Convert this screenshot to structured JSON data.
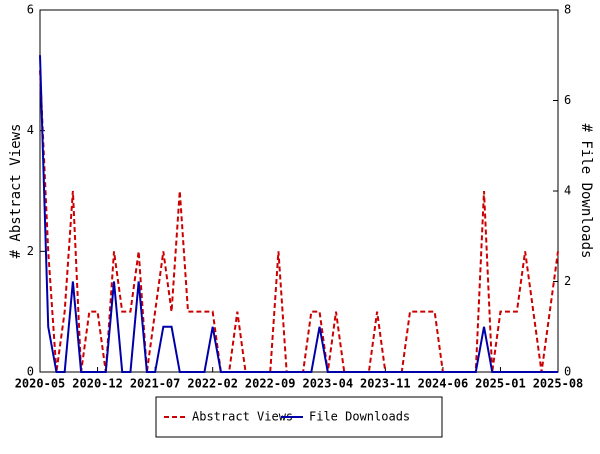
{
  "chart_data": {
    "type": "line",
    "ylabel": "# Abstract Views",
    "y2label": "# File Downloads",
    "categories": [
      "2020-05",
      null,
      null,
      null,
      null,
      null,
      null,
      "2020-12",
      null,
      null,
      null,
      null,
      null,
      null,
      "2021-07",
      null,
      null,
      null,
      null,
      null,
      null,
      "2022-02",
      null,
      null,
      null,
      null,
      null,
      null,
      "2022-09",
      null,
      null,
      null,
      null,
      null,
      null,
      "2023-04",
      null,
      null,
      null,
      null,
      null,
      null,
      "2023-11",
      null,
      null,
      null,
      null,
      null,
      null,
      "2024-06",
      null,
      null,
      null,
      null,
      null,
      null,
      "2025-01",
      null,
      null,
      null,
      null,
      null,
      null,
      "2025-08"
    ],
    "series": [
      {
        "name": "Abstract Views",
        "color": "#cc0000",
        "dash": true,
        "values": [
          5,
          2,
          0,
          1,
          3,
          0,
          1,
          1,
          0,
          2,
          1,
          1,
          2,
          0,
          1,
          2,
          1,
          3,
          1,
          1,
          1,
          1,
          0,
          0,
          1,
          0,
          0,
          0,
          0,
          2,
          0,
          0,
          0,
          1,
          1,
          0,
          1,
          0,
          0,
          0,
          0,
          1,
          0,
          0,
          0,
          1,
          1,
          1,
          1,
          0,
          0,
          0,
          0,
          0,
          3,
          0,
          1,
          1,
          1,
          2,
          1,
          0,
          1,
          2
        ]
      },
      {
        "name": "File Downloads",
        "color": "#0000aa",
        "dash": false,
        "axis": "y2",
        "values": [
          7,
          1,
          0,
          0,
          2,
          0,
          0,
          0,
          0,
          2,
          0,
          0,
          2,
          0,
          0,
          1,
          1,
          0,
          0,
          0,
          0,
          1,
          0,
          0,
          0,
          0,
          0,
          0,
          0,
          0,
          0,
          0,
          0,
          0,
          1,
          0,
          0,
          0,
          0,
          0,
          0,
          0,
          0,
          0,
          0,
          0,
          0,
          0,
          0,
          0,
          0,
          0,
          0,
          0,
          1,
          0,
          0,
          0,
          0,
          0,
          0,
          0,
          0,
          0
        ]
      }
    ],
    "ylim": [
      0,
      6
    ],
    "yticks": [
      0,
      2,
      4,
      6
    ],
    "y2lim": [
      0,
      8
    ],
    "y2ticks": [
      0,
      2,
      4,
      6,
      8
    ]
  }
}
